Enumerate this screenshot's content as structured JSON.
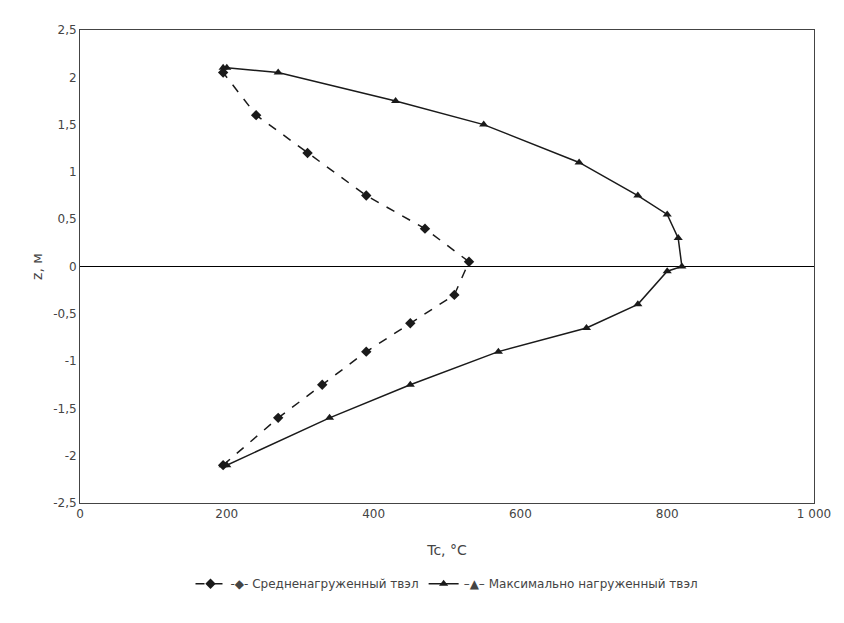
{
  "chart_data": {
    "type": "line",
    "xlabel": "Tc, °C",
    "ylabel": "z, м",
    "xlim": [
      0,
      1000
    ],
    "ylim": [
      -2.5,
      2.5
    ],
    "xticks": [
      0,
      200,
      400,
      600,
      800,
      {
        "value": 1000,
        "label": "1 000"
      }
    ],
    "yticks": [
      {
        "value": -2.5,
        "label": "-2,5"
      },
      -2,
      {
        "value": -1.5,
        "label": "-1,5"
      },
      -1,
      {
        "value": -0.5,
        "label": "-0,5"
      },
      0,
      {
        "value": 0.5,
        "label": "0,5"
      },
      1,
      {
        "value": 1.5,
        "label": "1,5"
      },
      2,
      {
        "value": 2.5,
        "label": "2,5"
      }
    ],
    "grid": false,
    "legend": "bottom",
    "series": [
      {
        "name": "-◆- Средненагруженный твэл",
        "color": "#1a1a1a",
        "marker": "diamond",
        "line_style": "dashed",
        "x": [
          195,
          270,
          330,
          390,
          450,
          510,
          530,
          470,
          390,
          310,
          240,
          195
        ],
        "values": [
          -2.1,
          -1.6,
          -1.25,
          -0.9,
          -0.6,
          -0.3,
          0.05,
          0.4,
          0.75,
          1.2,
          1.6,
          2.05
        ]
      },
      {
        "name": "–▲– Максимально нагруженный твэл",
        "color": "#1a1a1a",
        "marker": "triangle-up",
        "line_style": "solid",
        "x": [
          195,
          200,
          340,
          450,
          570,
          690,
          760,
          800,
          820,
          815,
          800,
          760,
          680,
          550,
          430,
          270,
          200,
          195
        ],
        "values": [
          -2.1,
          -2.1,
          -1.6,
          -1.25,
          -0.9,
          -0.65,
          -0.4,
          -0.05,
          0.0,
          0.3,
          0.55,
          0.75,
          1.1,
          1.5,
          1.75,
          2.05,
          2.1,
          2.1
        ]
      }
    ]
  }
}
